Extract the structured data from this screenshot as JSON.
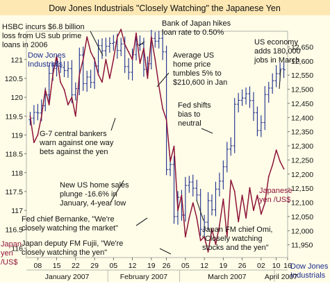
{
  "chart_data": {
    "type": "line",
    "title": "Dow Jones Industrials \"Closely Watching\" the Japanese Yen",
    "colors": {
      "background": "#fffde8",
      "title_bar": "#fde8b4",
      "dow_series": "#1b2b8c",
      "yen_series": "#8c1238",
      "grid": "#9e9e9e",
      "label_blue": "#1b2b8c",
      "label_red": "#8c1238",
      "text": "#111111"
    },
    "left_axis": {
      "label_line1": "Japan",
      "label_line2": "yen",
      "label_line3": "/US$",
      "ticks": [
        "121",
        "120.5",
        "120",
        "119.5",
        "119",
        "118.5",
        "118",
        "117.5",
        "117",
        "116.5",
        "116"
      ],
      "tick_values": [
        121,
        120.5,
        120,
        119.5,
        119,
        118.5,
        118,
        117.5,
        117,
        116.5,
        116
      ],
      "ylim": [
        115.75,
        121.75
      ]
    },
    "right_axis": {
      "label_line1": "Dow Jones",
      "label_line2": "Industrials",
      "ticks": [
        "12,650",
        "12,600",
        "12,550",
        "12,500",
        "12,450",
        "12,400",
        "12,350",
        "12,300",
        "12,250",
        "12,200",
        "12,150",
        "12,100",
        "12,050",
        "12,000",
        "11,950"
      ],
      "tick_values": [
        12650,
        12600,
        12550,
        12500,
        12450,
        12400,
        12350,
        12300,
        12250,
        12200,
        12150,
        12100,
        12050,
        12000,
        11950
      ],
      "ylim": [
        11905,
        12705
      ]
    },
    "x_axis": {
      "day_ticks": [
        "08",
        "15",
        "22",
        "29",
        "05",
        "12",
        "19",
        "26",
        "05",
        "12",
        "19",
        "26",
        "02",
        "10",
        "16"
      ],
      "months": [
        "January 2007",
        "February 2007",
        "March 2007",
        "April 2007"
      ],
      "n_trading_days": 68
    },
    "series": [
      {
        "name": "Dow Jones Industrials",
        "kind": "ohlc",
        "color": "dow",
        "closes": [
          12398,
          12418,
          12416,
          12442,
          12480,
          12556,
          12574,
          12582,
          12577,
          12566,
          12573,
          12480,
          12502,
          12621,
          12520,
          12543,
          12524,
          12582,
          12654,
          12636,
          12652,
          12662,
          12666,
          12637,
          12660,
          12580,
          12560,
          12622,
          12658,
          12660,
          12570,
          12590,
          12680,
          12670,
          12680,
          12632,
          12216,
          12234,
          12050,
          12118,
          12055,
          12160,
          12172,
          12150,
          12126,
          12005,
          12030,
          12106,
          12074,
          12147,
          12175,
          12226,
          12288,
          12300,
          12447,
          12461,
          12469,
          12484,
          12460,
          12417,
          12354,
          12382,
          12481,
          12504,
          12530,
          12555,
          12572,
          12569
        ]
      },
      {
        "name": "Japan yen /US$",
        "kind": "line",
        "color": "yen",
        "values": [
          119.5,
          118.8,
          119.0,
          119.5,
          120.2,
          119.8,
          120.6,
          121.1,
          120.4,
          120.2,
          119.8,
          120.0,
          119.5,
          120.6,
          121.0,
          121.6,
          121.2,
          121.0,
          120.6,
          120.4,
          121.0,
          120.5,
          121.0,
          121.6,
          121.8,
          121.4,
          121.2,
          121.0,
          121.7,
          120.9,
          121.3,
          120.5,
          121.6,
          121.0,
          120.3,
          119.7,
          119.4,
          118.3,
          118.7,
          117.0,
          117.4,
          116.3,
          116.8,
          117.2,
          116.8,
          116.2,
          116.3,
          115.9,
          116.5,
          116.1,
          116.6,
          117.3,
          116.3,
          117.8,
          117.5,
          116.7,
          117.4,
          116.8,
          117.6,
          117.0,
          117.4,
          116.9,
          117.2,
          117.9,
          118.2,
          118.6,
          118.3,
          118.1
        ]
      }
    ],
    "annotations": [
      {
        "line1": "HSBC incurs $6.8 billion",
        "line2": "loss from US sub prime",
        "line3": "loans in 2006",
        "color": "text"
      },
      {
        "line1": "Bank of Japan hikes",
        "line2": "loan rate to 0.50%",
        "color": "text"
      },
      {
        "line1": "Average US",
        "line2": "home price",
        "line3": "tumbles 5% to",
        "line4": "$210,600 in Jan",
        "color": "text"
      },
      {
        "line1": "US economy",
        "line2": "adds 180,000",
        "line3": "jobs in March",
        "color": "text"
      },
      {
        "line1": "Fed shifts",
        "line2": "bias to",
        "line3": "neutral",
        "color": "text"
      },
      {
        "line1": "G-7 central bankers",
        "line2": "warn against one way",
        "line3": "bets against the yen",
        "color": "text"
      },
      {
        "line1": "New US home sales",
        "line2": "plunge -16.6% in",
        "line3": "January, 4-year low",
        "color": "text"
      },
      {
        "line1": "Fed chief Bernanke, \"We're",
        "line2": "closely watching the market\"",
        "color": "text"
      },
      {
        "line1": "Japan deputy FM Fujii, \"We're",
        "line2": "closely watching the yen\"",
        "color": "text"
      },
      {
        "line1": "Japan FM chief Omi,",
        "line2": "\"Closely watching",
        "line3": "stocks and the yen\"",
        "color": "text"
      }
    ],
    "legend_dow": {
      "line1": "Dow Jones",
      "line2": "Industrials"
    },
    "legend_yen": {
      "line1": "Japanese",
      "line2": "yen /US$"
    }
  }
}
